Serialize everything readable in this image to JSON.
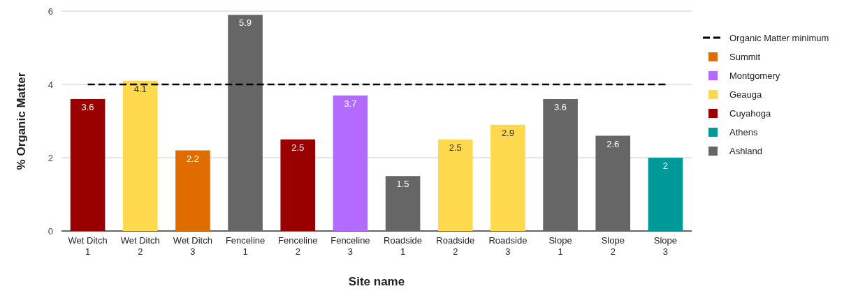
{
  "chart_data": {
    "type": "bar",
    "xlabel": "Site name",
    "ylabel": "% Organic Matter",
    "categories": [
      "Wet Ditch 1",
      "Wet Ditch 2",
      "Wet Ditch 3",
      "Fenceline 1",
      "Fenceline 2",
      "Fenceline 3",
      "Roadside 1",
      "Roadside 2",
      "Roadside 3",
      "Slope 1",
      "Slope 2",
      "Slope 3"
    ],
    "series": [
      {
        "name": "Organic Matter minimum",
        "type": "line",
        "line_style": "dashed",
        "color": "#000000",
        "values": [
          4,
          4,
          4,
          4,
          4,
          4,
          4,
          4,
          4,
          4,
          4,
          4
        ]
      },
      {
        "name": "Summit",
        "color": "#e06c00",
        "values": [
          null,
          null,
          2.2,
          null,
          null,
          null,
          null,
          null,
          null,
          null,
          null,
          null
        ],
        "value_labels": [
          null,
          null,
          "2.2",
          null,
          null,
          null,
          null,
          null,
          null,
          null,
          null,
          null
        ]
      },
      {
        "name": "Montgomery",
        "color": "#b36bff",
        "values": [
          null,
          null,
          null,
          null,
          null,
          3.7,
          null,
          null,
          null,
          null,
          null,
          null
        ],
        "value_labels": [
          null,
          null,
          null,
          null,
          null,
          "3.7",
          null,
          null,
          null,
          null,
          null,
          null
        ]
      },
      {
        "name": "Geauga",
        "color": "#ffd94d",
        "values": [
          null,
          4.1,
          null,
          null,
          null,
          null,
          null,
          2.5,
          2.9,
          null,
          null,
          null
        ],
        "value_labels": [
          null,
          "4.1",
          null,
          null,
          null,
          null,
          null,
          "2.5",
          "2.9",
          null,
          null,
          null
        ]
      },
      {
        "name": "Cuyahoga",
        "color": "#990000",
        "values": [
          3.6,
          null,
          null,
          null,
          2.5,
          null,
          null,
          null,
          null,
          null,
          null,
          null
        ],
        "value_labels": [
          "3.6",
          null,
          null,
          null,
          "2.5",
          null,
          null,
          null,
          null,
          null,
          null,
          null
        ]
      },
      {
        "name": "Athens",
        "color": "#009999",
        "values": [
          null,
          null,
          null,
          null,
          null,
          null,
          null,
          null,
          null,
          null,
          null,
          2
        ],
        "value_labels": [
          null,
          null,
          null,
          null,
          null,
          null,
          null,
          null,
          null,
          null,
          null,
          "2"
        ]
      },
      {
        "name": "Ashland",
        "color": "#666666",
        "values": [
          null,
          null,
          null,
          5.9,
          null,
          null,
          1.5,
          null,
          null,
          3.6,
          2.6,
          null
        ],
        "value_labels": [
          null,
          null,
          null,
          "5.9",
          null,
          null,
          "1.5",
          null,
          null,
          "3.6",
          "2.6",
          null
        ]
      }
    ],
    "stacked": true,
    "ylim": [
      0,
      6
    ],
    "yticks": [
      0,
      2,
      4,
      6
    ],
    "grid": "y",
    "legend": "right"
  }
}
